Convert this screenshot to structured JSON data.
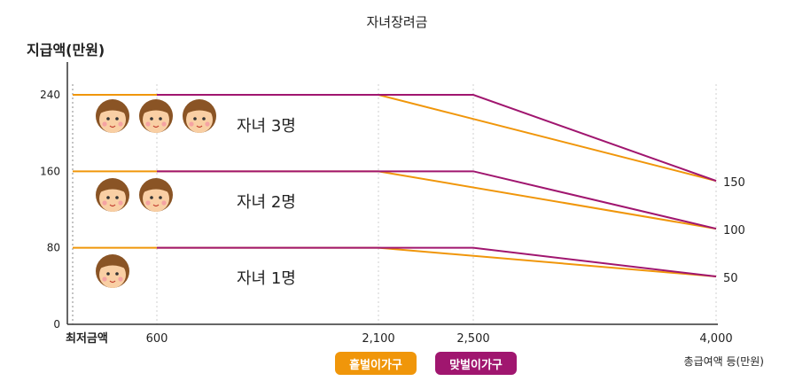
{
  "chart_data": {
    "type": "line",
    "title": "자녀장려금",
    "ylabel": "지급액(만원)",
    "xlabel": "총급여액 등(만원)",
    "x_tick_labels": [
      "최저금액",
      "600",
      "2,100",
      "2,500",
      "4,000"
    ],
    "x_ticks": [
      0,
      600,
      2100,
      2500,
      4000
    ],
    "y_ticks": [
      0,
      80,
      160,
      240
    ],
    "y_tick_labels": [
      "0",
      "80",
      "160",
      "240"
    ],
    "right_tick_labels": [
      "150",
      "100",
      "50"
    ],
    "ylim": [
      0,
      240
    ],
    "xlim": [
      0,
      4000
    ],
    "groups": [
      {
        "label": "자녀 3명",
        "children": 3
      },
      {
        "label": "자녀 2명",
        "children": 2
      },
      {
        "label": "자녀 1명",
        "children": 1
      }
    ],
    "series": [
      {
        "name": "홑벌이가구",
        "color": "#f0960a",
        "lines": [
          {
            "group": "자녀 3명",
            "x": [
              0,
              600,
              2100,
              4000
            ],
            "y": [
              240,
              240,
              240,
              150
            ]
          },
          {
            "group": "자녀 2명",
            "x": [
              0,
              600,
              2100,
              4000
            ],
            "y": [
              160,
              160,
              160,
              100
            ]
          },
          {
            "group": "자녀 1명",
            "x": [
              0,
              600,
              2100,
              4000
            ],
            "y": [
              80,
              80,
              80,
              50
            ]
          }
        ]
      },
      {
        "name": "맞벌이가구",
        "color": "#a0166f",
        "lines": [
          {
            "group": "자녀 3명",
            "x": [
              600,
              2500,
              4000
            ],
            "y": [
              240,
              240,
              150
            ]
          },
          {
            "group": "자녀 2명",
            "x": [
              600,
              2500,
              4000
            ],
            "y": [
              160,
              160,
              100
            ]
          },
          {
            "group": "자녀 1명",
            "x": [
              600,
              2500,
              4000
            ],
            "y": [
              80,
              80,
              50
            ]
          }
        ]
      }
    ],
    "legend": [
      "홑벌이가구",
      "맞벌이가구"
    ],
    "legend_position": "bottom-center",
    "icon": "child-face-icon"
  }
}
